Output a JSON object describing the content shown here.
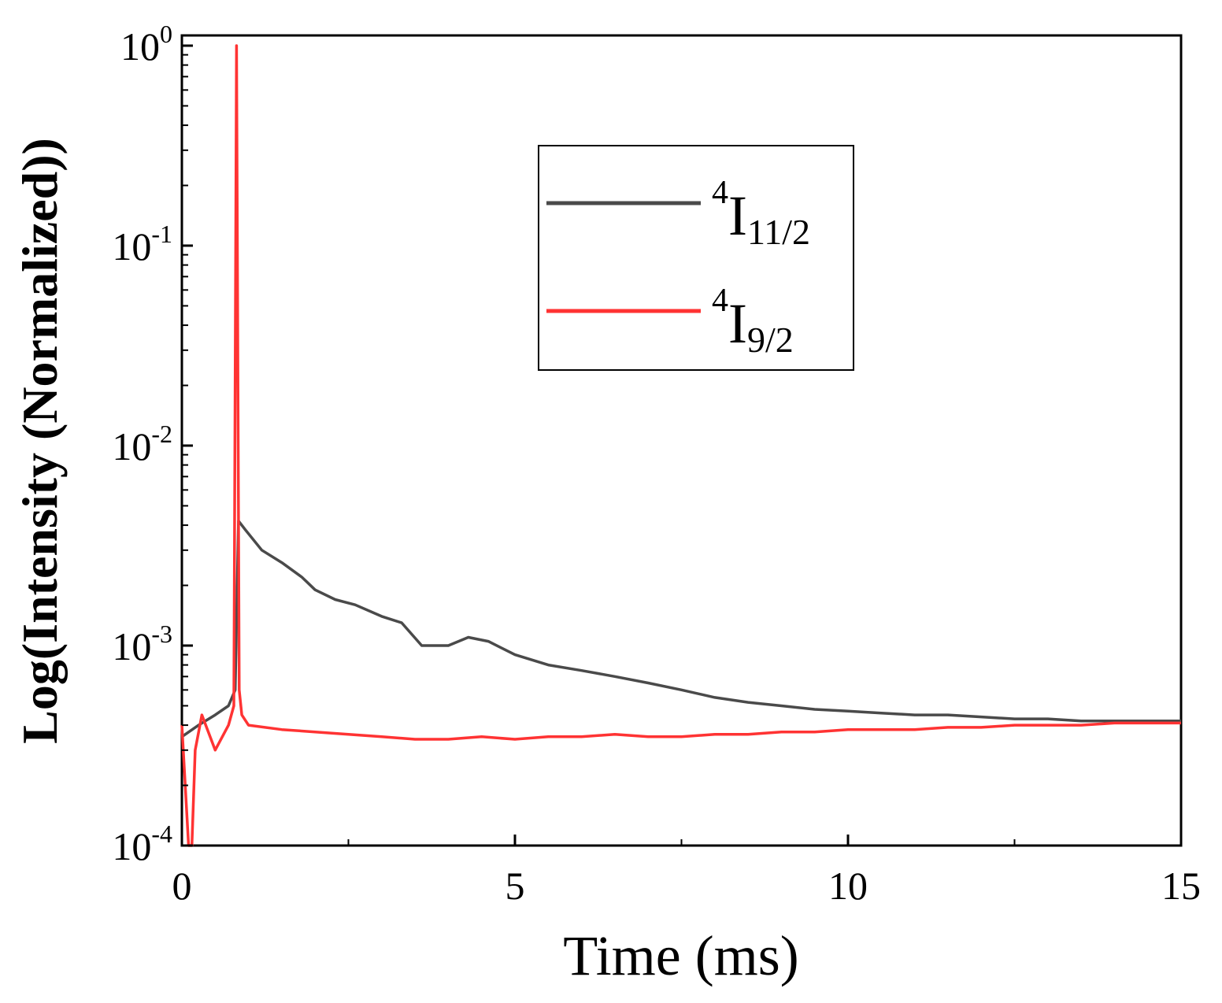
{
  "chart_data": {
    "type": "line",
    "xlabel": "Time (ms)",
    "ylabel": "Log(Intensity (Normalized))",
    "xlim": [
      0,
      15
    ],
    "ylim": [
      0.0001,
      1
    ],
    "y_scale": "log",
    "x_ticks": [
      0,
      5,
      10,
      15
    ],
    "x_tick_labels": [
      "0",
      "5",
      "10",
      "15"
    ],
    "y_ticks": [
      {
        "value": 1,
        "base": "10",
        "exp": "0"
      },
      {
        "value": 0.1,
        "base": "10",
        "exp": "-1"
      },
      {
        "value": 0.01,
        "base": "10",
        "exp": "-2"
      },
      {
        "value": 0.001,
        "base": "10",
        "exp": "-3"
      },
      {
        "value": 0.0001,
        "base": "10",
        "exp": "-4"
      }
    ],
    "grid": false,
    "legend_position": "top-right",
    "series": [
      {
        "name": "4I11/2",
        "legend": {
          "sup": "4",
          "main": "I",
          "sub": "11/2"
        },
        "color": "#4a4a4a",
        "x": [
          0,
          0.25,
          0.5,
          0.7,
          0.8,
          0.85,
          0.95,
          1.2,
          1.5,
          1.8,
          2.0,
          2.3,
          2.6,
          3.0,
          3.3,
          3.6,
          4.0,
          4.3,
          4.6,
          5.0,
          5.5,
          6.0,
          6.5,
          7.0,
          7.5,
          8.0,
          8.5,
          9.0,
          9.5,
          10.0,
          10.5,
          11.0,
          11.5,
          12.0,
          12.5,
          13.0,
          13.5,
          14.0,
          14.5,
          15.0
        ],
        "y": [
          0.00035,
          0.0004,
          0.00045,
          0.0005,
          0.0006,
          0.0042,
          0.0038,
          0.003,
          0.0026,
          0.0022,
          0.0019,
          0.0017,
          0.0016,
          0.0014,
          0.0013,
          0.001,
          0.001,
          0.0011,
          0.00105,
          0.0009,
          0.0008,
          0.00075,
          0.0007,
          0.00065,
          0.0006,
          0.00055,
          0.00052,
          0.0005,
          0.00048,
          0.00047,
          0.00046,
          0.00045,
          0.00045,
          0.00044,
          0.00043,
          0.00043,
          0.00042,
          0.00042,
          0.00042,
          0.00042
        ]
      },
      {
        "name": "4I9/2",
        "legend": {
          "sup": "4",
          "main": "I",
          "sub": "9/2"
        },
        "color": "#ff3333",
        "x": [
          0,
          0.1,
          0.15,
          0.2,
          0.3,
          0.5,
          0.7,
          0.78,
          0.82,
          0.86,
          0.9,
          1.0,
          1.5,
          2.0,
          2.5,
          3.0,
          3.5,
          4.0,
          4.5,
          5.0,
          5.5,
          6.0,
          6.5,
          7.0,
          7.5,
          8.0,
          8.5,
          9.0,
          9.5,
          10.0,
          10.5,
          11.0,
          11.5,
          12.0,
          12.5,
          13.0,
          13.5,
          14.0,
          14.5,
          15.0
        ],
        "y": [
          0.0004,
          0.0001,
          0.0001,
          0.0003,
          0.00045,
          0.0003,
          0.0004,
          0.0005,
          1.0,
          0.0006,
          0.00045,
          0.0004,
          0.00038,
          0.00037,
          0.00036,
          0.00035,
          0.00034,
          0.00034,
          0.00035,
          0.00034,
          0.00035,
          0.00035,
          0.00036,
          0.00035,
          0.00035,
          0.00036,
          0.00036,
          0.00037,
          0.00037,
          0.00038,
          0.00038,
          0.00038,
          0.00039,
          0.00039,
          0.0004,
          0.0004,
          0.0004,
          0.00041,
          0.00041,
          0.00041
        ]
      }
    ]
  }
}
